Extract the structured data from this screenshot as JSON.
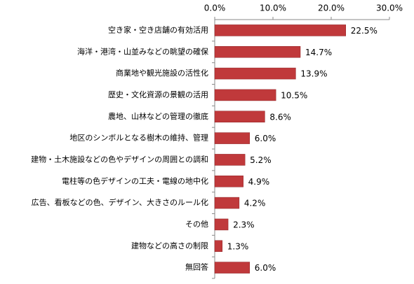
{
  "chart_data": {
    "type": "bar",
    "categories": [
      "空き家・空き店舗の有効活用",
      "海洋・港湾・山並みなどの眺望の確保",
      "商業地や観光施設の活性化",
      "歴史・文化資源の景観の活用",
      "農地、山林などの管理の徹底",
      "地区のシンボルとなる樹木の維持、管理",
      "建物・土木施設などの色やデザインの周囲との調和",
      "電柱等の色デザインの工夫・電線の地中化",
      "広告、看板などの色、デザイン、大きさのルール化",
      "その他",
      "建物などの高さの制限",
      "無回答"
    ],
    "values": [
      22.5,
      14.7,
      13.9,
      10.5,
      8.6,
      6.0,
      5.2,
      4.9,
      4.2,
      2.3,
      1.3,
      6.0
    ],
    "value_labels": [
      "22.5%",
      "14.7%",
      "13.9%",
      "10.5%",
      "8.6%",
      "6.0%",
      "5.2%",
      "4.9%",
      "4.2%",
      "2.3%",
      "1.3%",
      "6.0%"
    ],
    "color": "#c0393b",
    "xlim": [
      0,
      30
    ],
    "xticks": [
      {
        "value": 0,
        "label": "0.0%"
      },
      {
        "value": 10,
        "label": "10.0%"
      },
      {
        "value": 20,
        "label": "20.0%"
      },
      {
        "value": 30,
        "label": "30.0%"
      }
    ],
    "grid": false
  }
}
